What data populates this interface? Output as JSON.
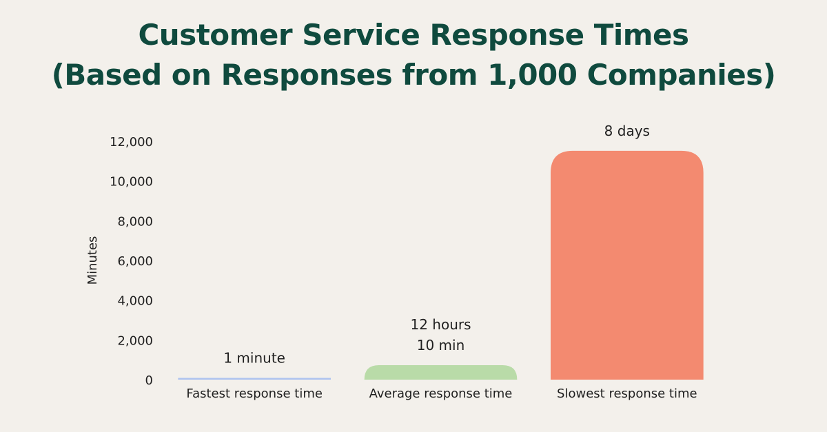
{
  "chart_data": {
    "type": "bar",
    "title": "Customer Service Response Times",
    "subtitle": "(Based on Responses from 1,000 Companies)",
    "xlabel": "",
    "ylabel": "Minutes",
    "ylim": [
      0,
      12000
    ],
    "yticks": [
      0,
      2000,
      4000,
      6000,
      8000,
      10000,
      12000
    ],
    "ytick_labels": [
      "0",
      "2,000",
      "4,000",
      "6,000",
      "8,000",
      "10,000",
      "12,000"
    ],
    "grid": false,
    "legend": "none",
    "categories": [
      "Fastest response time",
      "Average response time",
      "Slowest response time"
    ],
    "values": [
      1,
      730,
      11520
    ],
    "data_labels": [
      [
        "1 minute"
      ],
      [
        "12 hours",
        "10 min"
      ],
      [
        "8 days"
      ]
    ],
    "colors": [
      "#aec3ef",
      "#b9dba8",
      "#f38a70"
    ]
  }
}
